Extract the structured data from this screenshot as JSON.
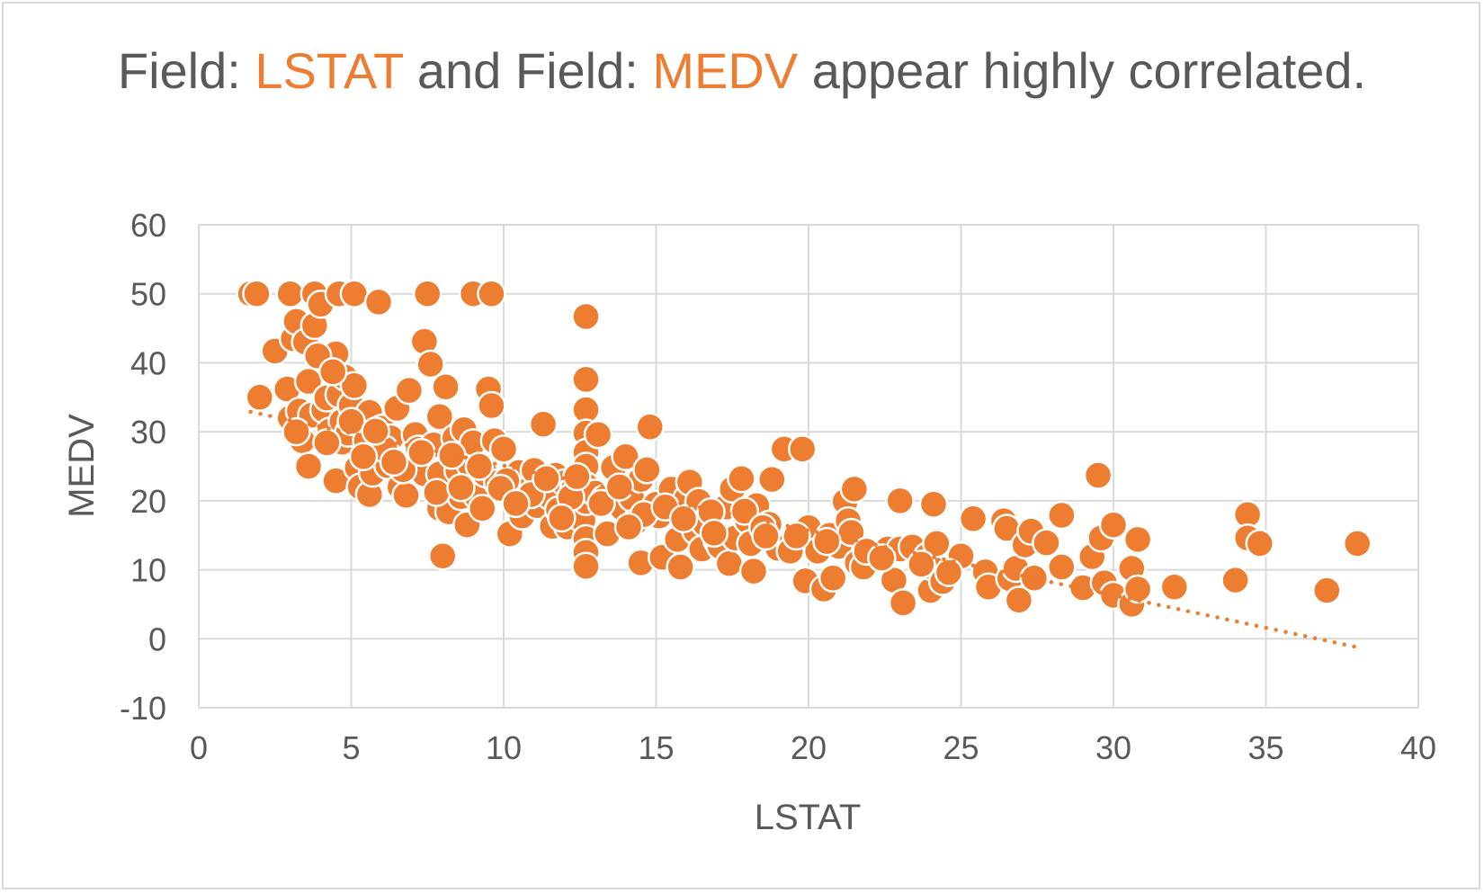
{
  "title": {
    "part1": "Field: ",
    "field1": "LSTAT",
    "part2": " and Field: ",
    "field2": "MEDV",
    "part3": " appear highly correlated."
  },
  "chart_data": {
    "type": "scatter",
    "xlabel": "LSTAT",
    "ylabel": "MEDV",
    "xlim": [
      0,
      40
    ],
    "ylim": [
      -10,
      60
    ],
    "xticks": [
      0,
      5,
      10,
      15,
      20,
      25,
      30,
      35,
      40
    ],
    "yticks": [
      -10,
      0,
      10,
      20,
      30,
      40,
      50,
      60
    ],
    "grid": true,
    "trendline": {
      "type": "linear",
      "style": "dotted",
      "x": [
        1.7,
        37.97
      ],
      "y": [
        32.9,
        -1.2
      ]
    },
    "colors": {
      "point": "#ED7D31",
      "point_stroke": "#ffffff",
      "grid": "#d9d9d9",
      "text": "#595959"
    },
    "series": [
      {
        "points": [
          [
            1.7,
            50
          ],
          [
            1.9,
            50
          ],
          [
            2.0,
            35
          ],
          [
            2.5,
            41.7
          ],
          [
            2.9,
            36.2
          ],
          [
            3.0,
            50
          ],
          [
            3.0,
            32
          ],
          [
            3.1,
            43.5
          ],
          [
            3.2,
            46
          ],
          [
            3.3,
            33
          ],
          [
            3.4,
            28.7
          ],
          [
            3.5,
            43
          ],
          [
            3.6,
            37.3
          ],
          [
            3.6,
            25
          ],
          [
            3.7,
            32.4
          ],
          [
            3.8,
            50
          ],
          [
            3.8,
            45.4
          ],
          [
            4.0,
            48.5
          ],
          [
            4.1,
            33.2
          ],
          [
            4.2,
            34.9
          ],
          [
            4.3,
            30.1
          ],
          [
            4.5,
            41.3
          ],
          [
            4.5,
            22.9
          ],
          [
            4.6,
            50
          ],
          [
            4.6,
            35.4
          ],
          [
            4.7,
            31.5
          ],
          [
            4.7,
            28.5
          ],
          [
            4.8,
            37.9
          ],
          [
            4.9,
            29.8
          ],
          [
            5.0,
            33.8
          ],
          [
            5.1,
            50
          ],
          [
            5.1,
            36.7
          ],
          [
            5.2,
            24.8
          ],
          [
            5.3,
            22
          ],
          [
            5.5,
            31.6
          ],
          [
            5.5,
            28.7
          ],
          [
            5.6,
            32.8
          ],
          [
            5.6,
            20.9
          ],
          [
            5.7,
            24
          ],
          [
            5.9,
            48.8
          ],
          [
            6.0,
            30.5
          ],
          [
            6.2,
            25.1
          ],
          [
            6.3,
            29.1
          ],
          [
            6.5,
            33.4
          ],
          [
            6.6,
            22
          ],
          [
            6.8,
            20.8
          ],
          [
            6.9,
            36
          ],
          [
            7.0,
            25
          ],
          [
            7.1,
            29.6
          ],
          [
            7.2,
            27.5
          ],
          [
            7.4,
            43.1
          ],
          [
            7.4,
            23.9
          ],
          [
            7.5,
            50
          ],
          [
            7.6,
            39.8
          ],
          [
            7.7,
            28.1
          ],
          [
            7.9,
            23.9
          ],
          [
            7.9,
            32.2
          ],
          [
            7.9,
            18.9
          ],
          [
            8.0,
            12
          ],
          [
            8.1,
            36.5
          ],
          [
            8.2,
            18.4
          ],
          [
            8.4,
            29.1
          ],
          [
            8.5,
            24.4
          ],
          [
            8.6,
            20.6
          ],
          [
            8.7,
            30.3
          ],
          [
            8.8,
            16.5
          ],
          [
            8.9,
            25.2
          ],
          [
            9.0,
            50
          ],
          [
            9.0,
            28.4
          ],
          [
            9.1,
            20.8
          ],
          [
            9.3,
            18.9
          ],
          [
            9.4,
            23.9
          ],
          [
            9.5,
            36.2
          ],
          [
            9.6,
            50
          ],
          [
            9.6,
            33.8
          ],
          [
            9.7,
            28.7
          ],
          [
            9.8,
            22.6
          ],
          [
            10.0,
            27.5
          ],
          [
            10.2,
            15.2
          ],
          [
            10.3,
            21.2
          ],
          [
            10.5,
            24.1
          ],
          [
            10.6,
            17.8
          ],
          [
            10.7,
            21.4
          ],
          [
            11.0,
            24.4
          ],
          [
            11.1,
            19.3
          ],
          [
            11.3,
            31.1
          ],
          [
            11.5,
            20.7
          ],
          [
            11.6,
            16.3
          ],
          [
            11.7,
            23.7
          ],
          [
            11.8,
            18.7
          ],
          [
            12.0,
            22.6
          ],
          [
            12.1,
            16.2
          ],
          [
            12.3,
            21.8
          ],
          [
            12.5,
            19.4
          ],
          [
            12.6,
            17.2
          ],
          [
            12.7,
            46.7
          ],
          [
            12.7,
            37.6
          ],
          [
            12.7,
            33.2
          ],
          [
            12.7,
            29.8
          ],
          [
            12.7,
            27
          ],
          [
            12.7,
            25
          ],
          [
            12.7,
            22.2
          ],
          [
            12.7,
            19.9
          ],
          [
            12.7,
            14.5
          ],
          [
            12.7,
            12.5
          ],
          [
            12.7,
            10.5
          ],
          [
            13.0,
            21.1
          ],
          [
            13.1,
            29.6
          ],
          [
            13.3,
            20.3
          ],
          [
            13.4,
            15.2
          ],
          [
            13.6,
            24.8
          ],
          [
            13.9,
            18.9
          ],
          [
            14.0,
            26.4
          ],
          [
            14.2,
            20.4
          ],
          [
            14.3,
            16.8
          ],
          [
            14.5,
            23.1
          ],
          [
            14.5,
            11
          ],
          [
            14.7,
            24.5
          ],
          [
            14.8,
            30.7
          ],
          [
            15.0,
            19.5
          ],
          [
            15.1,
            17.8
          ],
          [
            15.2,
            11.8
          ],
          [
            15.5,
            21.7
          ],
          [
            15.7,
            14.4
          ],
          [
            15.8,
            10.4
          ],
          [
            16.0,
            20.3
          ],
          [
            16.1,
            22.7
          ],
          [
            16.3,
            15.6
          ],
          [
            16.4,
            19.9
          ],
          [
            16.5,
            13
          ],
          [
            16.6,
            16.7
          ],
          [
            17.0,
            14.2
          ],
          [
            17.1,
            13.4
          ],
          [
            17.3,
            19.1
          ],
          [
            17.4,
            10.9
          ],
          [
            17.5,
            21.7
          ],
          [
            17.6,
            14.6
          ],
          [
            17.8,
            23.2
          ],
          [
            18.0,
            17.1
          ],
          [
            18.1,
            13.8
          ],
          [
            18.2,
            9.8
          ],
          [
            18.3,
            19.3
          ],
          [
            18.7,
            16.6
          ],
          [
            18.8,
            23.1
          ],
          [
            19.0,
            13.1
          ],
          [
            19.2,
            27.5
          ],
          [
            19.4,
            12.7
          ],
          [
            19.8,
            27.5
          ],
          [
            19.9,
            8.4
          ],
          [
            20.0,
            16.1
          ],
          [
            20.3,
            12.7
          ],
          [
            20.5,
            7.2
          ],
          [
            20.7,
            15
          ],
          [
            20.8,
            8.8
          ],
          [
            21.0,
            13.4
          ],
          [
            21.2,
            19.9
          ],
          [
            21.3,
            17.1
          ],
          [
            21.4,
            15.4
          ],
          [
            21.5,
            21.7
          ],
          [
            21.6,
            11
          ],
          [
            21.8,
            10.4
          ],
          [
            22.6,
            13
          ],
          [
            22.8,
            8.5
          ],
          [
            23.0,
            13
          ],
          [
            23.0,
            20
          ],
          [
            23.1,
            5.2
          ],
          [
            23.4,
            13.3
          ],
          [
            23.9,
            12
          ],
          [
            24.0,
            7
          ],
          [
            24.0,
            10.5
          ],
          [
            24.1,
            19.5
          ],
          [
            24.2,
            13.8
          ],
          [
            24.4,
            8.3
          ],
          [
            25.0,
            12
          ],
          [
            25.4,
            17.4
          ],
          [
            25.8,
            9.7
          ],
          [
            25.9,
            7.5
          ],
          [
            26.4,
            17.1
          ],
          [
            26.5,
            16
          ],
          [
            26.6,
            8.7
          ],
          [
            26.8,
            10.2
          ],
          [
            26.9,
            5.6
          ],
          [
            27.1,
            13.6
          ],
          [
            27.3,
            15.6
          ],
          [
            27.4,
            8.8
          ],
          [
            27.8,
            13.9
          ],
          [
            28.3,
            17.9
          ],
          [
            28.3,
            10.4
          ],
          [
            29.0,
            7.4
          ],
          [
            29.3,
            11.9
          ],
          [
            29.5,
            23.7
          ],
          [
            29.6,
            14.6
          ],
          [
            29.7,
            8.1
          ],
          [
            30.0,
            16.5
          ],
          [
            30.0,
            6.3
          ],
          [
            30.6,
            5
          ],
          [
            30.6,
            10.2
          ],
          [
            30.8,
            14.4
          ],
          [
            30.8,
            7.2
          ],
          [
            32.0,
            7.5
          ],
          [
            34.0,
            8.5
          ],
          [
            34.4,
            18
          ],
          [
            34.4,
            14.6
          ],
          [
            34.8,
            13.8
          ],
          [
            37.0,
            7
          ],
          [
            38.0,
            13.8
          ],
          [
            3.9,
            41
          ],
          [
            4.4,
            38.7
          ],
          [
            5.0,
            31.5
          ],
          [
            6.1,
            27.5
          ],
          [
            6.7,
            24.5
          ],
          [
            7.3,
            27
          ],
          [
            8.3,
            26.6
          ],
          [
            9.2,
            25
          ],
          [
            10.1,
            22.9
          ],
          [
            10.9,
            20.9
          ],
          [
            11.4,
            23.2
          ],
          [
            12.2,
            20.5
          ],
          [
            13.2,
            19.6
          ],
          [
            13.8,
            22
          ],
          [
            14.6,
            18
          ],
          [
            15.3,
            19.1
          ],
          [
            15.9,
            17.4
          ],
          [
            16.8,
            18.4
          ],
          [
            17.9,
            18.5
          ],
          [
            18.5,
            16.1
          ],
          [
            19.6,
            14.9
          ],
          [
            20.6,
            14.1
          ],
          [
            21.9,
            12.7
          ],
          [
            22.4,
            11.7
          ],
          [
            24.6,
            9.6
          ],
          [
            4.2,
            28.4
          ],
          [
            5.4,
            26.4
          ],
          [
            6.4,
            25.6
          ],
          [
            7.8,
            21.2
          ],
          [
            9.9,
            21.8
          ],
          [
            11.9,
            17.5
          ],
          [
            14.1,
            16.2
          ],
          [
            16.9,
            15.3
          ],
          [
            18.6,
            14.9
          ],
          [
            23.7,
            10.8
          ],
          [
            3.2,
            30
          ],
          [
            5.8,
            30.1
          ],
          [
            8.6,
            21.9
          ],
          [
            10.4,
            19.6
          ],
          [
            12.4,
            23.5
          ]
        ]
      }
    ]
  }
}
